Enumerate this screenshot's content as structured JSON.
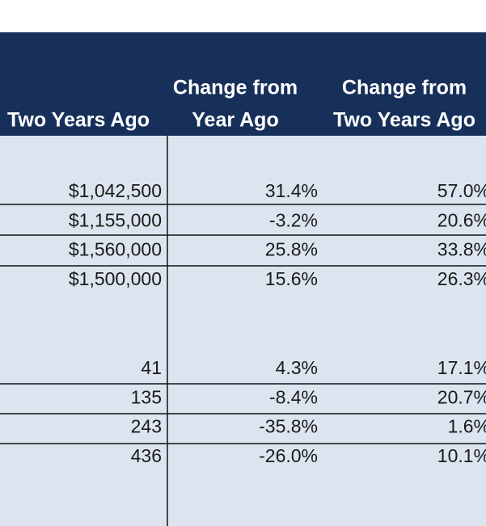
{
  "table": {
    "columns": [
      [
        "Two Years Ago"
      ],
      [
        "Change from",
        "Year Ago"
      ],
      [
        "Change from",
        "Two Years Ago"
      ]
    ],
    "groups": [
      [
        [
          "$1,042,500",
          "31.4%",
          "57.0%"
        ],
        [
          "$1,155,000",
          "-3.2%",
          "20.6%"
        ],
        [
          "$1,560,000",
          "25.8%",
          "33.8%"
        ],
        [
          "$1,500,000",
          "15.6%",
          "26.3%"
        ]
      ],
      [
        [
          "41",
          "4.3%",
          "17.1%"
        ],
        [
          "135",
          "-8.4%",
          "20.7%"
        ],
        [
          "243",
          "-35.8%",
          "1.6%"
        ],
        [
          "436",
          "-26.0%",
          "10.1%"
        ]
      ]
    ]
  }
}
